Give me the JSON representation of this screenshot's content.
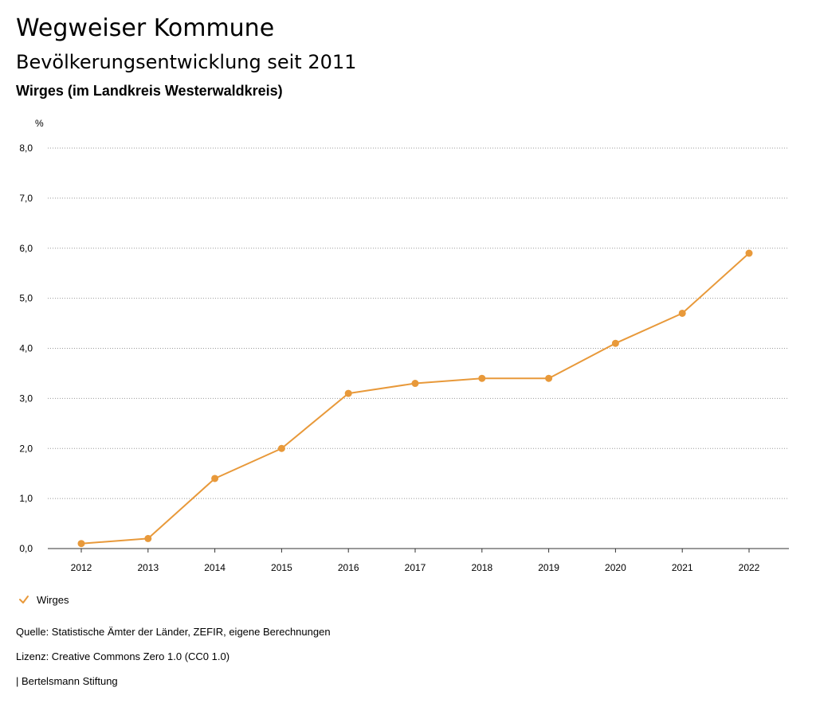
{
  "header": {
    "title": "Wegweiser Kommune",
    "subtitle": "Bevölkerungsentwicklung seit 2011",
    "region": "Wirges (im Landkreis Westerwaldkreis)"
  },
  "footer": {
    "source": "Quelle: Statistische Ämter der Länder, ZEFIR, eigene Berechnungen",
    "license": "Lizenz: Creative Commons Zero 1.0 (CC0 1.0)",
    "organization": "| Bertelsmann Stiftung"
  },
  "chart_data": {
    "type": "line",
    "title": "Bevölkerungsentwicklung seit 2011",
    "xlabel": "",
    "ylabel": "%",
    "ylim": [
      0,
      8
    ],
    "yticks": [
      "0,0",
      "1,0",
      "2,0",
      "3,0",
      "4,0",
      "5,0",
      "6,0",
      "7,0",
      "8,0"
    ],
    "categories": [
      "2012",
      "2013",
      "2014",
      "2015",
      "2016",
      "2017",
      "2018",
      "2019",
      "2020",
      "2021",
      "2022"
    ],
    "series": [
      {
        "name": "Wirges",
        "values": [
          0.1,
          0.2,
          1.4,
          2.0,
          3.1,
          3.3,
          3.4,
          3.4,
          4.1,
          4.7,
          5.9
        ],
        "color": "#e8993a"
      }
    ],
    "grid": true,
    "legend_position": "bottom-left"
  }
}
